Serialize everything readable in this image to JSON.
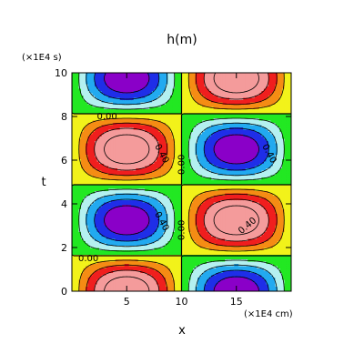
{
  "chart_data": {
    "type": "heatmap",
    "title": "h(m)",
    "xlabel": "x",
    "ylabel": "t",
    "x_unit": "(×1E4 cm)",
    "y_unit": "(×1E4 s)",
    "xlim": [
      0,
      20
    ],
    "ylim": [
      0,
      10
    ],
    "x_ticks": [
      5,
      10,
      15
    ],
    "y_ticks": [
      0,
      2,
      4,
      6,
      8,
      10
    ],
    "x_tick_labels": [
      "5",
      "10",
      "15"
    ],
    "y_tick_labels": [
      "0",
      "2",
      "4",
      "6",
      "8",
      "10"
    ],
    "x_wavelength": 20,
    "t_period": 6.5,
    "fill_levels": [
      -1.0,
      -0.8,
      -0.6,
      -0.4,
      -0.2,
      0.0,
      0.2,
      0.4,
      0.6,
      0.8,
      1.0
    ],
    "fill_colors": [
      "#8a00c8",
      "#1f2ee8",
      "#22aaf0",
      "#b4f0f0",
      "#22e822",
      "#f2f21a",
      "#f58c14",
      "#f01e1e",
      "#f49b9b",
      "#f49b9b"
    ],
    "contour_labels": [
      {
        "text": "0.00",
        "x": 3.2,
        "y": 8.0,
        "rotate": 0
      },
      {
        "text": "0.40",
        "x": 8.2,
        "y": 6.3,
        "rotate": 62
      },
      {
        "text": "0.00",
        "x": 10.0,
        "y": 5.8,
        "rotate": -90
      },
      {
        "text": "0.40",
        "x": 18.0,
        "y": 6.3,
        "rotate": 62
      },
      {
        "text": "0.40",
        "x": 8.2,
        "y": 3.2,
        "rotate": 62
      },
      {
        "text": "0.00",
        "x": 10.0,
        "y": 2.8,
        "rotate": -90
      },
      {
        "text": "0.40",
        "x": 16.0,
        "y": 3.0,
        "rotate": -40
      },
      {
        "text": "0.00",
        "x": 1.5,
        "y": 1.5,
        "rotate": 0
      }
    ]
  }
}
